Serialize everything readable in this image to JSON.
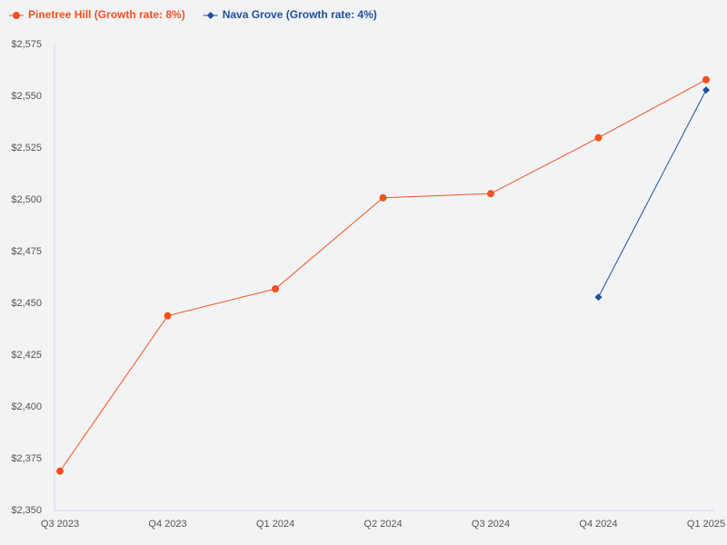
{
  "chart_data": {
    "type": "line",
    "categories": [
      "Q3 2023",
      "Q4 2023",
      "Q1 2024",
      "Q2 2024",
      "Q3 2024",
      "Q4 2024",
      "Q1 2025"
    ],
    "series": [
      {
        "name": "Pinetree Hill (Growth rate: 8%)",
        "color": "#f4511e",
        "marker": "circle",
        "values": [
          2369,
          2444,
          2457,
          2501,
          2503,
          2530,
          2558
        ]
      },
      {
        "name": "Nava Grove (Growth rate: 4%)",
        "color": "#1f4e9c",
        "marker": "diamond",
        "values": [
          null,
          null,
          null,
          null,
          null,
          2453,
          2553
        ]
      }
    ],
    "ylim": [
      2350,
      2575
    ],
    "yticks": [
      {
        "value": 2350,
        "label": "$2,350"
      },
      {
        "value": 2375,
        "label": "$2,375"
      },
      {
        "value": 2400,
        "label": "$2,400"
      },
      {
        "value": 2425,
        "label": "$2,425"
      },
      {
        "value": 2450,
        "label": "$2,450"
      },
      {
        "value": 2475,
        "label": "$2,475"
      },
      {
        "value": 2500,
        "label": "$2,500"
      },
      {
        "value": 2525,
        "label": "$2,525"
      },
      {
        "value": 2550,
        "label": "$2,550"
      },
      {
        "value": 2575,
        "label": "$2,575"
      }
    ],
    "legend": "top-left",
    "grid": false
  }
}
